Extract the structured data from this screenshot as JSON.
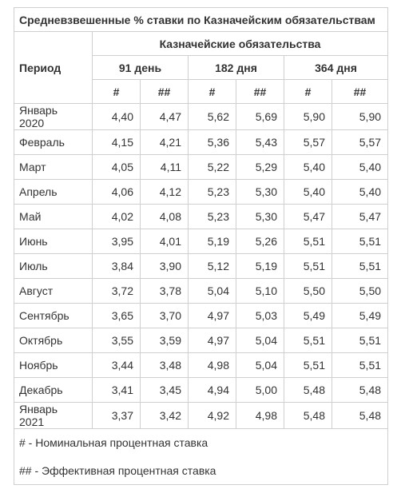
{
  "table": {
    "title": "Средневзвешенные % ставки по Казначейским обязательствам",
    "period_header": "Период",
    "group_header": "Казначейские обязательства",
    "terms": [
      "91 день",
      "182 дня",
      "364 дня"
    ],
    "subheaders": [
      "#",
      "##",
      "#",
      "##",
      "#",
      "##"
    ],
    "rows": [
      {
        "period": "Январь 2020",
        "values": [
          "4,40",
          "4,47",
          "5,62",
          "5,69",
          "5,90",
          "5,90"
        ]
      },
      {
        "period": "Февраль",
        "values": [
          "4,15",
          "4,21",
          "5,36",
          "5,43",
          "5,57",
          "5,57"
        ]
      },
      {
        "period": "Март",
        "values": [
          "4,05",
          "4,11",
          "5,22",
          "5,29",
          "5,40",
          "5,40"
        ]
      },
      {
        "period": "Апрель",
        "values": [
          "4,06",
          "4,12",
          "5,23",
          "5,30",
          "5,40",
          "5,40"
        ]
      },
      {
        "period": "Май",
        "values": [
          "4,02",
          "4,08",
          "5,23",
          "5,30",
          "5,47",
          "5,47"
        ]
      },
      {
        "period": "Июнь",
        "values": [
          "3,95",
          "4,01",
          "5,19",
          "5,26",
          "5,51",
          "5,51"
        ]
      },
      {
        "period": "Июль",
        "values": [
          "3,84",
          "3,90",
          "5,12",
          "5,19",
          "5,51",
          "5,51"
        ]
      },
      {
        "period": "Август",
        "values": [
          "3,72",
          "3,78",
          "5,04",
          "5,10",
          "5,50",
          "5,50"
        ]
      },
      {
        "period": "Сентябрь",
        "values": [
          "3,65",
          "3,70",
          "4,97",
          "5,03",
          "5,49",
          "5,49"
        ]
      },
      {
        "period": "Октябрь",
        "values": [
          "3,55",
          "3,59",
          "4,97",
          "5,04",
          "5,51",
          "5,51"
        ]
      },
      {
        "period": "Ноябрь",
        "values": [
          "3,44",
          "3,48",
          "4,98",
          "5,04",
          "5,51",
          "5,51"
        ]
      },
      {
        "period": "Декабрь",
        "values": [
          "3,41",
          "3,45",
          "4,94",
          "5,00",
          "5,48",
          "5,48"
        ]
      },
      {
        "period": "Январь 2021",
        "values": [
          "3,37",
          "3,42",
          "4,92",
          "4,98",
          "5,48",
          "5,48"
        ]
      }
    ],
    "notes": [
      "# - Номинальная процентная ставка",
      "## - Эффективная процентная ставка"
    ]
  }
}
